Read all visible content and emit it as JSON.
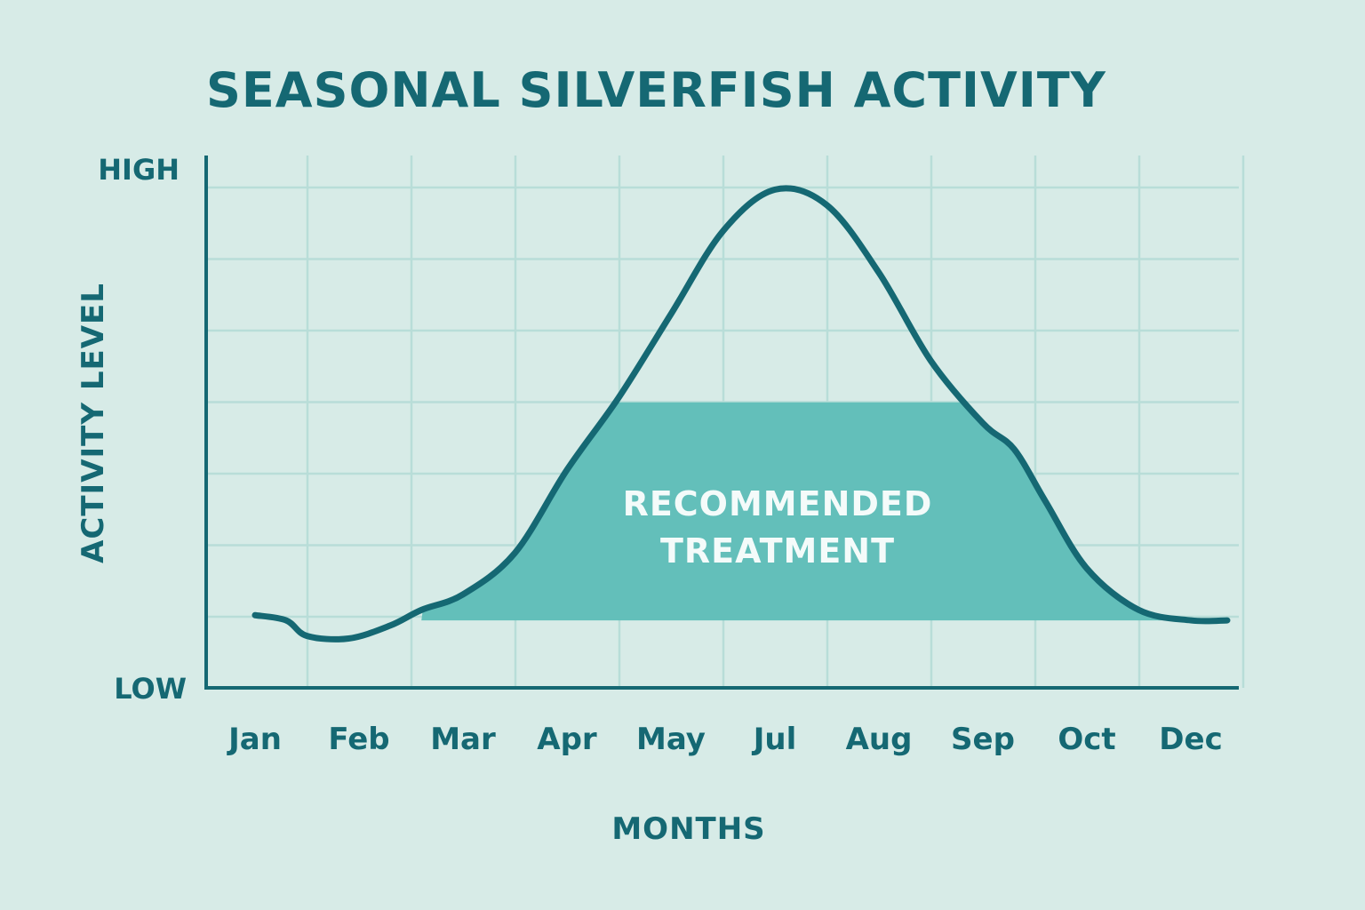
{
  "chart_data": {
    "type": "line",
    "title": "SEASONAL SILVERFISH ACTIVITY",
    "xlabel": "MONTHS",
    "ylabel": "ACTIVITY LEVEL",
    "y_tick_labels": {
      "high": "HIGH",
      "low": "LOW"
    },
    "categories": [
      "Jan",
      "Feb",
      "Mar",
      "Apr",
      "May",
      "Jul",
      "Aug",
      "Sep",
      "Oct",
      "Dec"
    ],
    "ylim": [
      0,
      100
    ],
    "grid": true,
    "series": [
      {
        "x": [
          0,
          0.3,
          0.5,
          0.9,
          1.3,
          1.6,
          2.0,
          2.5,
          3.0,
          3.5,
          4.0,
          4.5,
          5.0,
          5.5,
          6.0,
          6.5,
          7.0,
          7.3,
          7.6,
          8.0,
          8.5,
          9.0,
          9.35
        ],
        "values": [
          14,
          13,
          10,
          9.5,
          12,
          15,
          18,
          26,
          42,
          56,
          72,
          88,
          96,
          93,
          80,
          63,
          51,
          46,
          36,
          23,
          15,
          13,
          13
        ]
      }
    ],
    "annotations": [
      {
        "text_lines": [
          "RECOMMENDED",
          "TREATMENT"
        ],
        "band_y": [
          13,
          55
        ],
        "band_x": [
          1.6,
          9.0
        ]
      }
    ],
    "colors": {
      "line": "#156873",
      "band": "#63bfba",
      "grid": "#b8ddd8",
      "text": "#156873",
      "band_text": "#f4fbfa",
      "background": "#d7ebe7"
    }
  }
}
